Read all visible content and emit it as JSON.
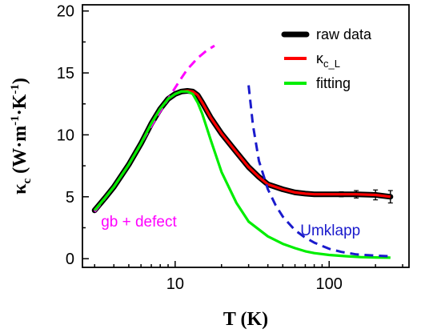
{
  "chart_data": {
    "type": "line",
    "xlabel_main": "T",
    "xlabel_unit": "(K)",
    "ylabel_symbol": "κ",
    "ylabel_subscript": "c",
    "ylabel_units": "(W·m",
    "ylabel_exp1": "-1",
    "ylabel_mid": "·K",
    "ylabel_exp2": "-1",
    "ylabel_close": ")",
    "x_scale": "log",
    "xlim": [
      2.5,
      330
    ],
    "ylim": [
      -0.7,
      20.5
    ],
    "x_ticks": [
      10,
      100
    ],
    "x_tick_labels": [
      "10",
      "100"
    ],
    "y_ticks": [
      0,
      5,
      10,
      15,
      20
    ],
    "y_tick_labels": [
      "0",
      "5",
      "10",
      "15",
      "20"
    ],
    "legend_position": "top-right",
    "legend": [
      {
        "label": "raw data",
        "color": "#000000"
      },
      {
        "label": "κ",
        "subscript": "c_L",
        "color": "#ff0000"
      },
      {
        "label": "fitting",
        "color": "#00ee00"
      }
    ],
    "annotations": [
      {
        "text": "gb + defect",
        "color": "#ff00ff",
        "x": 3.3,
        "y": 2.6
      },
      {
        "text": "Umklapp",
        "color": "#1a1acc",
        "x": 65,
        "y": 1.9
      }
    ],
    "series": [
      {
        "name": "raw data",
        "color": "#000000",
        "style": "thick",
        "x": [
          3.0,
          3.5,
          4.0,
          5.0,
          6.0,
          7.0,
          8.0,
          9.0,
          10.0,
          11.0,
          12.0,
          13.0,
          14.0,
          15.0,
          17.0,
          20.0,
          25.0,
          30.0,
          35.0,
          40.0,
          50.0,
          60.0,
          70.0,
          80.0,
          100.0,
          120.0,
          150.0,
          200.0,
          250.0
        ],
        "y": [
          3.9,
          4.9,
          5.8,
          7.6,
          9.3,
          10.9,
          12.1,
          12.9,
          13.3,
          13.5,
          13.55,
          13.5,
          13.2,
          12.6,
          11.4,
          10.1,
          8.6,
          7.4,
          6.6,
          6.0,
          5.6,
          5.35,
          5.25,
          5.2,
          5.2,
          5.2,
          5.2,
          5.15,
          5.0
        ],
        "error_bar": [
          0.1,
          0.1,
          0.1,
          0.1,
          0.1,
          0.1,
          0.1,
          0.1,
          0.1,
          0.1,
          0.1,
          0.1,
          0.1,
          0.1,
          0.1,
          0.1,
          0.1,
          0.1,
          0.1,
          0.1,
          0.1,
          0.1,
          0.1,
          0.1,
          0.15,
          0.2,
          0.3,
          0.4,
          0.5
        ]
      },
      {
        "name": "κc_L",
        "color": "#ff0000",
        "style": "line",
        "x": [
          3.0,
          3.5,
          4.0,
          5.0,
          6.0,
          7.0,
          8.0,
          9.0,
          10.0,
          11.0,
          12.0,
          13.0,
          14.0,
          15.0,
          17.0,
          20.0,
          25.0,
          30.0,
          35.0,
          40.0,
          50.0,
          60.0,
          70.0,
          80.0,
          100.0,
          120.0,
          150.0,
          200.0,
          250.0
        ],
        "y": [
          3.9,
          4.9,
          5.8,
          7.6,
          9.3,
          10.9,
          12.1,
          12.9,
          13.3,
          13.5,
          13.55,
          13.5,
          13.2,
          12.6,
          11.4,
          10.1,
          8.6,
          7.4,
          6.6,
          6.0,
          5.6,
          5.35,
          5.25,
          5.2,
          5.2,
          5.2,
          5.2,
          5.15,
          5.0
        ]
      },
      {
        "name": "fitting",
        "color": "#00ee00",
        "style": "line",
        "x": [
          3.0,
          3.5,
          4.0,
          5.0,
          6.0,
          7.0,
          8.0,
          9.0,
          10.0,
          11.0,
          12.0,
          13.0,
          14.0,
          15.0,
          17.0,
          20.0,
          25.0,
          30.0,
          40.0,
          50.0,
          60.0,
          70.0,
          80.0,
          100.0,
          130.0,
          160.0,
          200.0,
          250.0
        ],
        "y": [
          3.9,
          4.9,
          5.8,
          7.6,
          9.3,
          10.9,
          12.1,
          12.9,
          13.3,
          13.5,
          13.5,
          13.3,
          12.6,
          11.7,
          9.6,
          7.0,
          4.5,
          3.0,
          1.8,
          1.2,
          0.85,
          0.6,
          0.45,
          0.3,
          0.2,
          0.13,
          0.1,
          0.08
        ]
      },
      {
        "name": "gb + defect",
        "color": "#ff00ff",
        "style": "dashed",
        "x": [
          3.0,
          4.0,
          5.0,
          6.0,
          7.0,
          8.0,
          9.0,
          10.0,
          11.0,
          12.0,
          14.0,
          16.0,
          18.0
        ],
        "y": [
          3.8,
          5.8,
          7.6,
          9.3,
          10.7,
          11.9,
          12.9,
          13.8,
          14.6,
          15.3,
          16.2,
          16.8,
          17.2
        ]
      },
      {
        "name": "Umklapp",
        "color": "#1a1acc",
        "style": "dashed",
        "x": [
          30.0,
          32.0,
          35.0,
          40.0,
          45.0,
          50.0,
          60.0,
          70.0,
          80.0,
          100.0,
          120.0,
          150.0,
          200.0,
          250.0
        ],
        "y": [
          14.0,
          10.8,
          7.9,
          5.6,
          4.3,
          3.4,
          2.3,
          1.7,
          1.3,
          0.8,
          0.55,
          0.35,
          0.25,
          0.2
        ]
      }
    ]
  }
}
